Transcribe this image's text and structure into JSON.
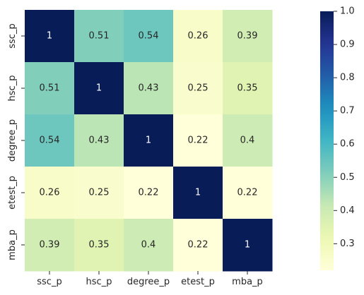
{
  "chart_data": {
    "type": "heatmap",
    "colormap": "YlGnBu",
    "row_labels": [
      "ssc_p",
      "hsc_p",
      "degree_p",
      "etest_p",
      "mba_p"
    ],
    "col_labels": [
      "ssc_p",
      "hsc_p",
      "degree_p",
      "etest_p",
      "mba_p"
    ],
    "values": [
      [
        1,
        0.51,
        0.54,
        0.26,
        0.39
      ],
      [
        0.51,
        1,
        0.43,
        0.25,
        0.35
      ],
      [
        0.54,
        0.43,
        1,
        0.22,
        0.4
      ],
      [
        0.26,
        0.25,
        0.22,
        1,
        0.22
      ],
      [
        0.39,
        0.35,
        0.4,
        0.22,
        1
      ]
    ],
    "annotation_text": [
      [
        "1",
        "0.51",
        "0.54",
        "0.26",
        "0.39"
      ],
      [
        "0.51",
        "1",
        "0.43",
        "0.25",
        "0.35"
      ],
      [
        "0.54",
        "0.43",
        "1",
        "0.22",
        "0.4"
      ],
      [
        "0.26",
        "0.25",
        "0.22",
        "1",
        "0.22"
      ],
      [
        "0.39",
        "0.35",
        "0.4",
        "0.22",
        "1"
      ]
    ],
    "colorbar": {
      "vmin": 0.22,
      "vmax": 1.0,
      "ticks": [
        0.3,
        0.4,
        0.5,
        0.6,
        0.7,
        0.8,
        0.9,
        1.0
      ],
      "tick_labels": [
        "0.3",
        "0.4",
        "0.5",
        "0.6",
        "0.7",
        "0.8",
        "0.9",
        "1.0"
      ],
      "placement": "right"
    },
    "title": "",
    "xlabel": "",
    "ylabel": "",
    "grid": false
  }
}
